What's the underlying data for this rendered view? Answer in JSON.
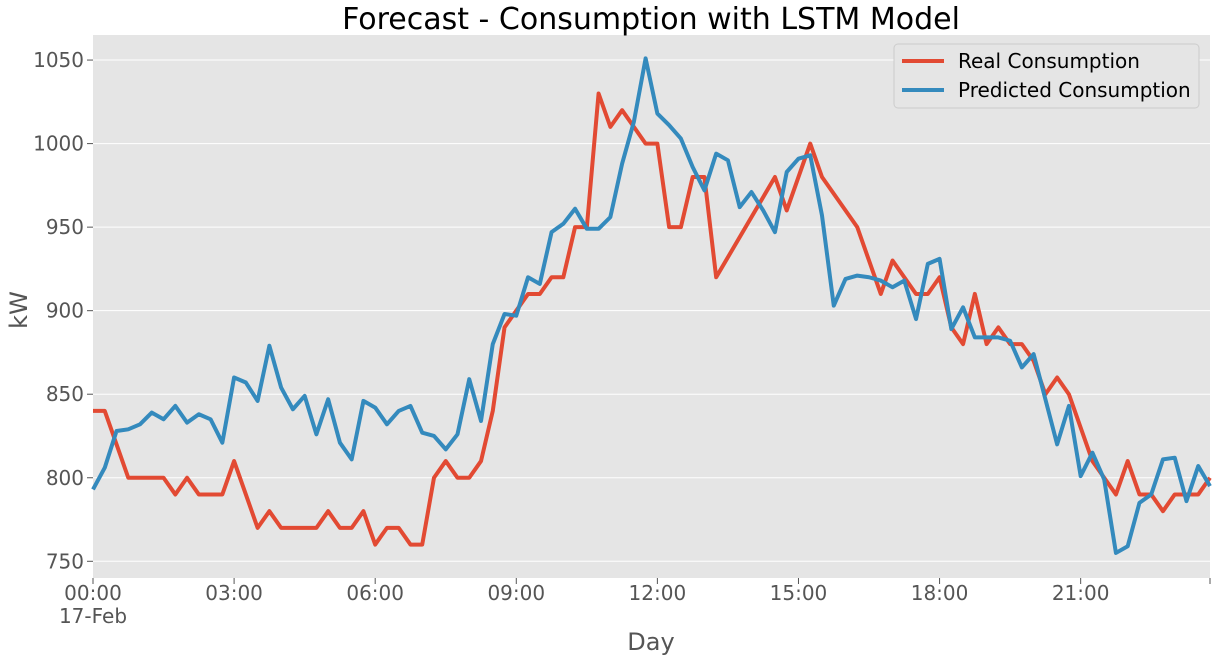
{
  "chart_data": {
    "type": "line",
    "title": "Forecast - Consumption with LSTM Model",
    "xlabel": "Day",
    "ylabel": "kW",
    "x_unit": "hours",
    "x_ticks": [
      {
        "value": 0,
        "label": "00:00",
        "sublabel": "17-Feb"
      },
      {
        "value": 3,
        "label": "03:00"
      },
      {
        "value": 6,
        "label": "06:00"
      },
      {
        "value": 9,
        "label": "09:00"
      },
      {
        "value": 12,
        "label": "12:00"
      },
      {
        "value": 15,
        "label": "15:00"
      },
      {
        "value": 18,
        "label": "18:00"
      },
      {
        "value": 21,
        "label": "21:00"
      }
    ],
    "y_ticks": [
      750,
      800,
      850,
      900,
      950,
      1000,
      1050
    ],
    "xlim": [
      0,
      23.75
    ],
    "ylim": [
      740,
      1065
    ],
    "grid": true,
    "legend_position": "top-right",
    "series": [
      {
        "name": "Real Consumption",
        "color": "#E24A33",
        "points": [
          [
            0,
            840
          ],
          [
            0.25,
            840
          ],
          [
            0.5,
            820
          ],
          [
            0.75,
            800
          ],
          [
            1,
            800
          ],
          [
            1.25,
            800
          ],
          [
            1.5,
            800
          ],
          [
            1.75,
            790
          ],
          [
            2,
            800
          ],
          [
            2.25,
            790
          ],
          [
            2.5,
            790
          ],
          [
            2.75,
            790
          ],
          [
            3,
            810
          ],
          [
            3.25,
            790
          ],
          [
            3.5,
            770
          ],
          [
            3.75,
            780
          ],
          [
            4,
            770
          ],
          [
            4.25,
            770
          ],
          [
            4.5,
            770
          ],
          [
            4.75,
            770
          ],
          [
            5,
            780
          ],
          [
            5.25,
            770
          ],
          [
            5.5,
            770
          ],
          [
            5.75,
            780
          ],
          [
            6,
            760
          ],
          [
            6.25,
            770
          ],
          [
            6.5,
            770
          ],
          [
            6.75,
            760
          ],
          [
            7,
            760
          ],
          [
            7.25,
            800
          ],
          [
            7.5,
            810
          ],
          [
            7.75,
            800
          ],
          [
            8,
            800
          ],
          [
            8.25,
            810
          ],
          [
            8.5,
            840
          ],
          [
            8.75,
            890
          ],
          [
            9,
            900
          ],
          [
            9.25,
            910
          ],
          [
            9.5,
            910
          ],
          [
            9.75,
            920
          ],
          [
            10,
            920
          ],
          [
            10.25,
            950
          ],
          [
            10.5,
            950
          ],
          [
            10.75,
            1030
          ],
          [
            11,
            1010
          ],
          [
            11.25,
            1020
          ],
          [
            11.5,
            1010
          ],
          [
            11.75,
            1000
          ],
          [
            12,
            1000
          ],
          [
            12.25,
            950
          ],
          [
            12.5,
            950
          ],
          [
            12.75,
            980
          ],
          [
            13,
            980
          ],
          [
            13.25,
            920
          ],
          [
            14.5,
            980
          ],
          [
            14.75,
            960
          ],
          [
            15.25,
            1000
          ],
          [
            15.5,
            980
          ],
          [
            16.25,
            950
          ],
          [
            16.75,
            910
          ],
          [
            17,
            930
          ],
          [
            17.5,
            910
          ],
          [
            17.75,
            910
          ],
          [
            18,
            920
          ],
          [
            18.25,
            890
          ],
          [
            18.5,
            880
          ],
          [
            18.75,
            910
          ],
          [
            19,
            880
          ],
          [
            19.25,
            890
          ],
          [
            19.5,
            880
          ],
          [
            19.75,
            880
          ],
          [
            20,
            870
          ],
          [
            20.25,
            850
          ],
          [
            20.5,
            860
          ],
          [
            20.75,
            850
          ],
          [
            21,
            830
          ],
          [
            21.25,
            810
          ],
          [
            21.5,
            800
          ],
          [
            21.75,
            790
          ],
          [
            22,
            810
          ],
          [
            22.25,
            790
          ],
          [
            22.5,
            790
          ],
          [
            22.75,
            780
          ],
          [
            23,
            790
          ],
          [
            23.25,
            790
          ],
          [
            23.5,
            790
          ],
          [
            23.75,
            800
          ]
        ]
      },
      {
        "name": "Predicted Consumption",
        "color": "#348ABD",
        "points": [
          [
            0,
            793
          ],
          [
            0.25,
            806
          ],
          [
            0.5,
            828
          ],
          [
            0.75,
            829
          ],
          [
            1,
            832
          ],
          [
            1.25,
            839
          ],
          [
            1.5,
            835
          ],
          [
            1.75,
            843
          ],
          [
            2,
            833
          ],
          [
            2.25,
            838
          ],
          [
            2.5,
            835
          ],
          [
            2.75,
            821
          ],
          [
            3,
            860
          ],
          [
            3.25,
            857
          ],
          [
            3.5,
            846
          ],
          [
            3.75,
            879
          ],
          [
            4,
            854
          ],
          [
            4.25,
            841
          ],
          [
            4.5,
            849
          ],
          [
            4.75,
            826
          ],
          [
            5,
            847
          ],
          [
            5.25,
            821
          ],
          [
            5.5,
            811
          ],
          [
            5.75,
            846
          ],
          [
            6,
            842
          ],
          [
            6.25,
            832
          ],
          [
            6.5,
            840
          ],
          [
            6.75,
            843
          ],
          [
            7,
            827
          ],
          [
            7.25,
            825
          ],
          [
            7.5,
            817
          ],
          [
            7.75,
            826
          ],
          [
            8,
            859
          ],
          [
            8.25,
            834
          ],
          [
            8.5,
            880
          ],
          [
            8.75,
            898
          ],
          [
            9,
            897
          ],
          [
            9.25,
            920
          ],
          [
            9.5,
            916
          ],
          [
            9.75,
            947
          ],
          [
            10,
            952
          ],
          [
            10.25,
            961
          ],
          [
            10.5,
            949
          ],
          [
            10.75,
            949
          ],
          [
            11,
            956
          ],
          [
            11.25,
            988
          ],
          [
            11.5,
            1013
          ],
          [
            11.75,
            1051
          ],
          [
            12,
            1018
          ],
          [
            12.25,
            1011
          ],
          [
            12.5,
            1003
          ],
          [
            12.75,
            986
          ],
          [
            13,
            972
          ],
          [
            13.25,
            994
          ],
          [
            13.5,
            990
          ],
          [
            13.75,
            962
          ],
          [
            14,
            971
          ],
          [
            14.25,
            960
          ],
          [
            14.5,
            947
          ],
          [
            14.75,
            983
          ],
          [
            15,
            991
          ],
          [
            15.25,
            993
          ],
          [
            15.5,
            957
          ],
          [
            15.75,
            903
          ],
          [
            16,
            919
          ],
          [
            16.25,
            921
          ],
          [
            16.5,
            920
          ],
          [
            16.75,
            918
          ],
          [
            17,
            914
          ],
          [
            17.25,
            918
          ],
          [
            17.5,
            895
          ],
          [
            17.75,
            928
          ],
          [
            18,
            931
          ],
          [
            18.25,
            889
          ],
          [
            18.5,
            902
          ],
          [
            18.75,
            884
          ],
          [
            19,
            884
          ],
          [
            19.25,
            884
          ],
          [
            19.5,
            882
          ],
          [
            19.75,
            866
          ],
          [
            20,
            874
          ],
          [
            20.25,
            847
          ],
          [
            20.5,
            820
          ],
          [
            20.75,
            843
          ],
          [
            21,
            801
          ],
          [
            21.25,
            815
          ],
          [
            21.5,
            799
          ],
          [
            21.75,
            755
          ],
          [
            22,
            759
          ],
          [
            22.25,
            785
          ],
          [
            22.5,
            790
          ],
          [
            22.75,
            811
          ],
          [
            23,
            812
          ],
          [
            23.25,
            786
          ],
          [
            23.5,
            807
          ],
          [
            23.75,
            795
          ]
        ]
      }
    ]
  }
}
